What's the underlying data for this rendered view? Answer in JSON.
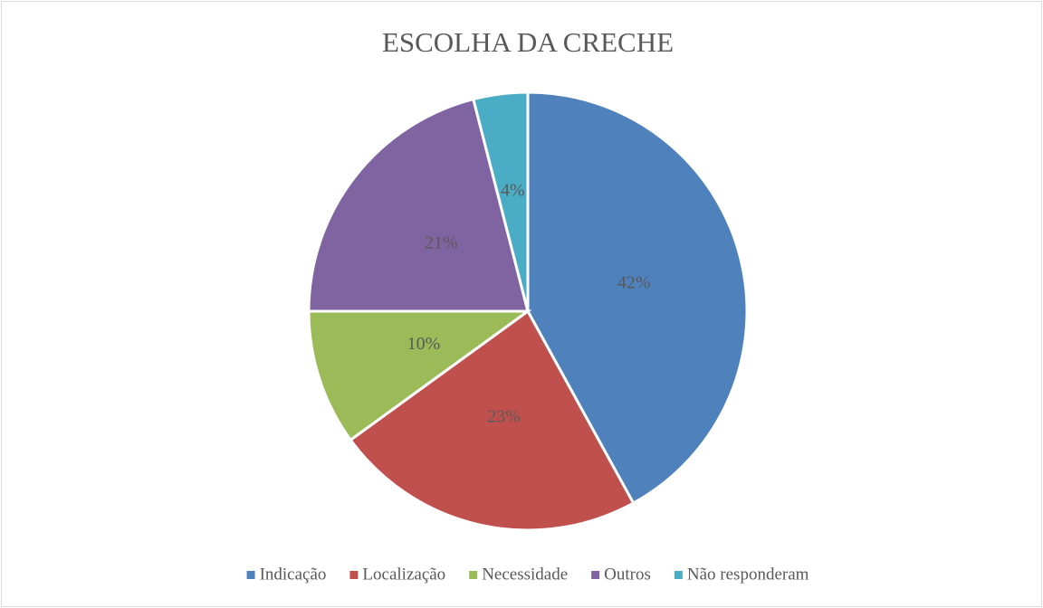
{
  "chart_data": {
    "type": "pie",
    "title": "ESCOLHA DA CRECHE",
    "categories": [
      "Indicação",
      "Localização",
      "Necessidade",
      "Outros",
      "Não responderam"
    ],
    "values": [
      42,
      23,
      10,
      21,
      4
    ],
    "value_labels": [
      "42%",
      "23%",
      "10%",
      "21%",
      "4%"
    ],
    "colors": [
      "#4f81bd",
      "#c0504d",
      "#9bbb59",
      "#8064a2",
      "#4bacc6"
    ],
    "legend": "bottom"
  }
}
